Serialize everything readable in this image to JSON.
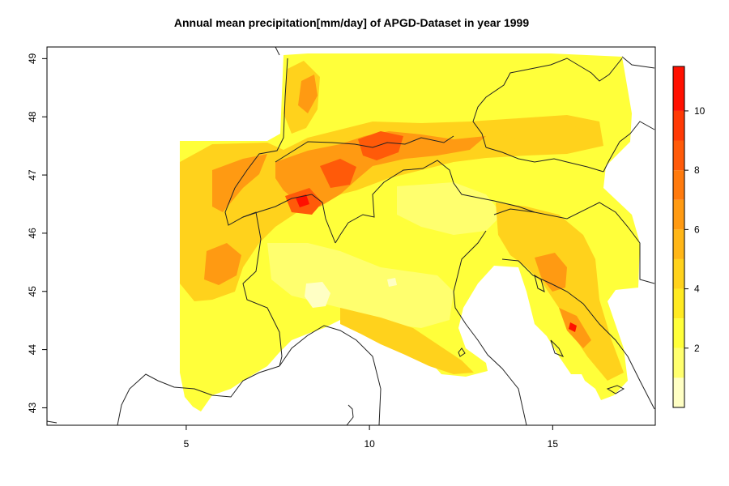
{
  "title": "Annual mean precipitation[mm/day] of APGD-Dataset in year 1999",
  "chart_data": {
    "type": "heatmap",
    "title": "Annual mean precipitation[mm/day] of APGD-Dataset in year 1999",
    "xlabel": "",
    "ylabel": "",
    "xlim": [
      1.2,
      17.8
    ],
    "ylim": [
      42.7,
      49.2
    ],
    "x_ticks": [
      "5",
      "10",
      "15"
    ],
    "y_ticks": [
      "43",
      "44",
      "45",
      "46",
      "47",
      "48",
      "49"
    ],
    "colorbar": {
      "ticks": [
        "2",
        "4",
        "6",
        "8",
        "10"
      ],
      "range": [
        0,
        11.5
      ],
      "levels": [
        {
          "from": 0,
          "to": 1,
          "color": "#ffffc4"
        },
        {
          "from": 1,
          "to": 2,
          "color": "#ffff6e"
        },
        {
          "from": 2,
          "to": 3,
          "color": "#ffff3a"
        },
        {
          "from": 3,
          "to": 4,
          "color": "#ffea21"
        },
        {
          "from": 4,
          "to": 5,
          "color": "#ffd21c"
        },
        {
          "from": 5,
          "to": 6,
          "color": "#ffb617"
        },
        {
          "from": 6,
          "to": 7,
          "color": "#ff9a12"
        },
        {
          "from": 7,
          "to": 8,
          "color": "#ff7a0d"
        },
        {
          "from": 8,
          "to": 9,
          "color": "#ff5a09"
        },
        {
          "from": 9,
          "to": 10,
          "color": "#ff3905"
        },
        {
          "from": 10,
          "to": 11.5,
          "color": "#ff1000"
        }
      ]
    },
    "grid": false,
    "legend": "right"
  }
}
